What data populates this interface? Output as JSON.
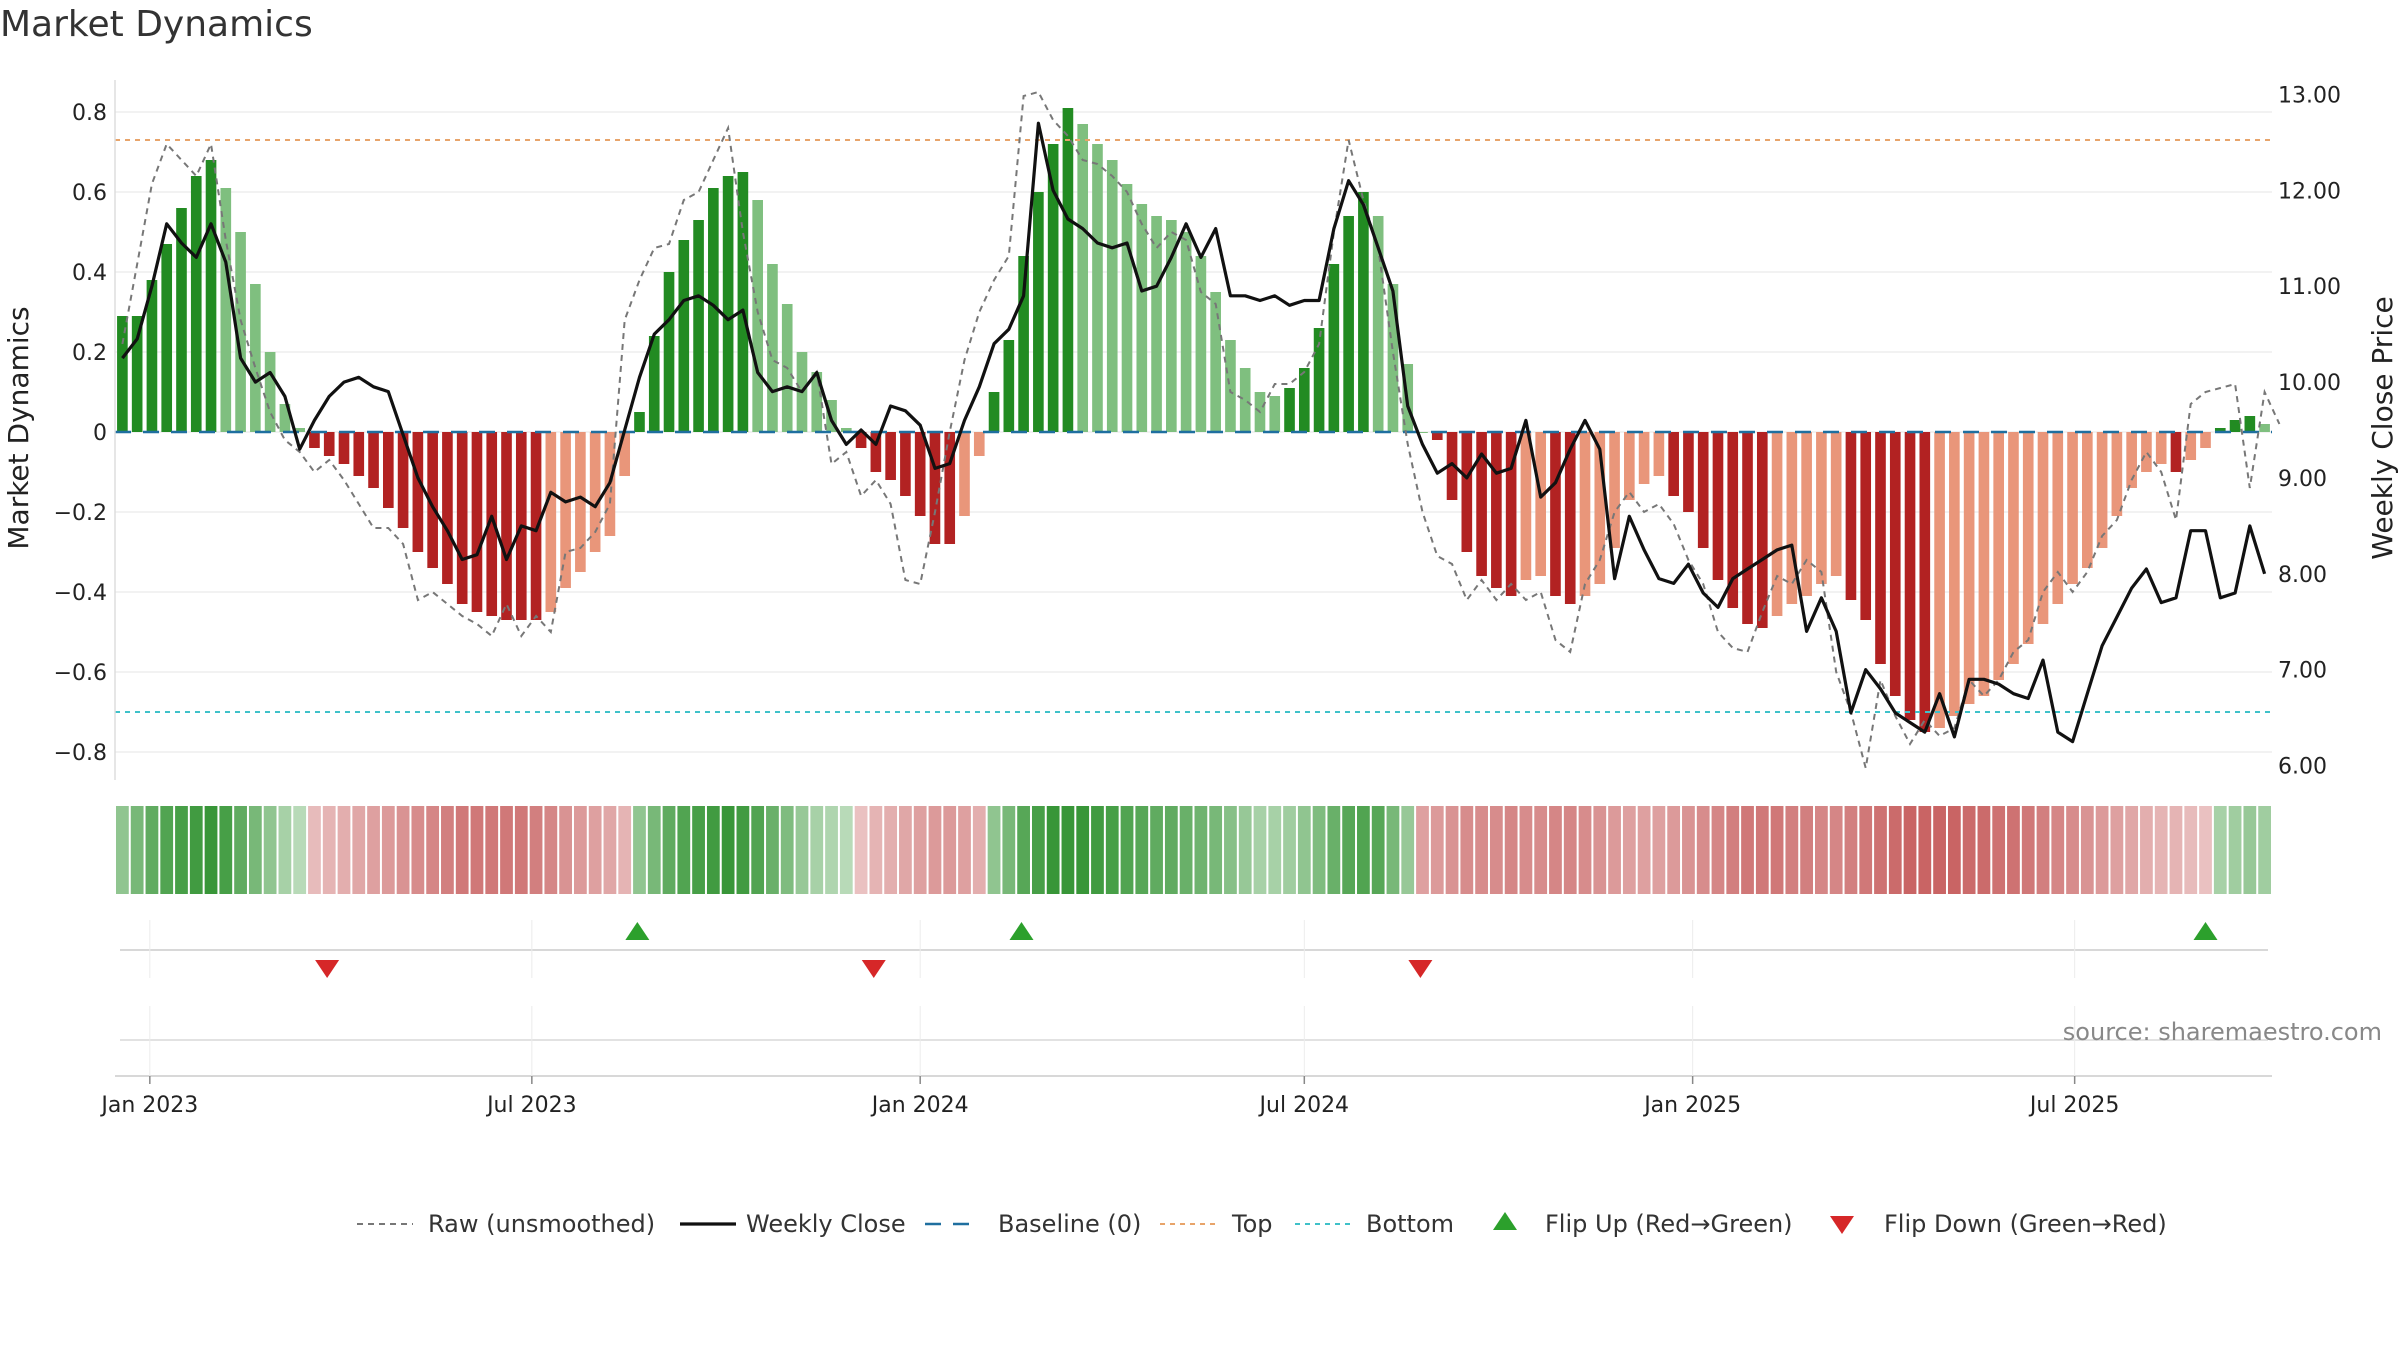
{
  "title": "Market Dynamics",
  "source": "source: sharemaestro.com",
  "colors": {
    "strong_green": "#228B22",
    "weak_green": "#7FBF7F",
    "strong_red": "#B22222",
    "weak_red": "#E9967A",
    "price_line": "#111111",
    "raw_line": "#777777",
    "baseline": "#1f6f9f",
    "top": "#e8a46a",
    "bottom": "#3fc1c9",
    "flip_up": "#2ca02c",
    "flip_down": "#d62728"
  },
  "chart_data": {
    "type": "bar",
    "x_start": "2022-12-19",
    "x_interval": "weekly",
    "y_left_label": "Market Dynamics",
    "y_right_label": "Weekly Close Price",
    "y_left_range": [
      -0.87,
      0.88
    ],
    "y_right_range": [
      5.85,
      13.15
    ],
    "y_left_ticks": [
      "0.8",
      "0.6",
      "0.4",
      "0.2",
      "0",
      "−0.2",
      "−0.4",
      "−0.6",
      "−0.8"
    ],
    "y_left_tick_values": [
      0.8,
      0.6,
      0.4,
      0.2,
      0,
      -0.2,
      -0.4,
      -0.6,
      -0.8
    ],
    "y_right_ticks": [
      "13.00",
      "12.00",
      "11.00",
      "10.00",
      "9.00",
      "8.00",
      "7.00",
      "6.00"
    ],
    "y_right_tick_values": [
      13,
      12,
      11,
      10,
      9,
      8,
      7,
      6
    ],
    "x_ticks": [
      {
        "label": "Jan 2023",
        "date": "2023-01-01"
      },
      {
        "label": "Jul 2023",
        "date": "2023-07-01"
      },
      {
        "label": "Jan 2024",
        "date": "2024-01-01"
      },
      {
        "label": "Jul 2024",
        "date": "2024-07-01"
      },
      {
        "label": "Jan 2025",
        "date": "2025-01-01"
      },
      {
        "label": "Jul 2025",
        "date": "2025-07-01"
      }
    ],
    "top_line": 0.73,
    "bottom_line": -0.7,
    "baseline": 0,
    "grid": true,
    "legend_position": "bottom",
    "legend": [
      "Raw (unsmoothed)",
      "Weekly Close",
      "Baseline (0)",
      "Top",
      "Bottom",
      "Flip Up (Red→Green)",
      "Flip Down (Green→Red)"
    ],
    "series": [
      {
        "name": "Market Dynamics",
        "values": [
          0.29,
          0.29,
          0.38,
          0.47,
          0.56,
          0.64,
          0.68,
          0.61,
          0.5,
          0.37,
          0.2,
          0.07,
          0.01,
          -0.04,
          -0.06,
          -0.08,
          -0.11,
          -0.14,
          -0.19,
          -0.24,
          -0.3,
          -0.34,
          -0.38,
          -0.43,
          -0.45,
          -0.46,
          -0.47,
          -0.47,
          -0.47,
          -0.45,
          -0.39,
          -0.35,
          -0.3,
          -0.26,
          -0.11,
          0.05,
          0.24,
          0.4,
          0.48,
          0.53,
          0.61,
          0.64,
          0.65,
          0.58,
          0.42,
          0.32,
          0.2,
          0.15,
          0.08,
          0.01,
          -0.04,
          -0.1,
          -0.12,
          -0.16,
          -0.21,
          -0.28,
          -0.28,
          -0.21,
          -0.06,
          0.1,
          0.23,
          0.44,
          0.6,
          0.72,
          0.81,
          0.77,
          0.72,
          0.68,
          0.62,
          0.57,
          0.54,
          0.53,
          0.5,
          0.44,
          0.35,
          0.23,
          0.16,
          0.1,
          0.09,
          0.11,
          0.16,
          0.26,
          0.42,
          0.54,
          0.6,
          0.54,
          0.37,
          0.17,
          0.0,
          -0.02,
          -0.17,
          -0.3,
          -0.36,
          -0.39,
          -0.41,
          -0.37,
          -0.36,
          -0.41,
          -0.43,
          -0.41,
          -0.38,
          -0.29,
          -0.17,
          -0.13,
          -0.11,
          -0.16,
          -0.2,
          -0.29,
          -0.37,
          -0.44,
          -0.48,
          -0.49,
          -0.46,
          -0.43,
          -0.41,
          -0.38,
          -0.36,
          -0.42,
          -0.47,
          -0.58,
          -0.66,
          -0.72,
          -0.75,
          -0.74,
          -0.71,
          -0.68,
          -0.66,
          -0.62,
          -0.58,
          -0.53,
          -0.48,
          -0.43,
          -0.38,
          -0.34,
          -0.29,
          -0.21,
          -0.14,
          -0.1,
          -0.08,
          -0.1,
          -0.07,
          -0.04,
          0.01,
          0.03,
          0.04,
          0.02
        ]
      },
      {
        "name": "Weekly Close",
        "values": [
          10.25,
          10.45,
          11.0,
          11.65,
          11.45,
          11.3,
          11.65,
          11.25,
          10.25,
          10.0,
          10.1,
          9.85,
          9.3,
          9.6,
          9.85,
          10.0,
          10.05,
          9.95,
          9.9,
          9.45,
          9.0,
          8.7,
          8.45,
          8.15,
          8.2,
          8.6,
          8.15,
          8.5,
          8.45,
          8.85,
          8.75,
          8.8,
          8.7,
          8.95,
          9.5,
          10.05,
          10.5,
          10.65,
          10.85,
          10.9,
          10.8,
          10.65,
          10.75,
          10.1,
          9.9,
          9.95,
          9.9,
          10.1,
          9.6,
          9.35,
          9.5,
          9.35,
          9.75,
          9.7,
          9.55,
          9.1,
          9.15,
          9.6,
          9.95,
          10.4,
          10.55,
          10.9,
          12.7,
          12.0,
          11.7,
          11.6,
          11.45,
          11.4,
          11.45,
          10.95,
          11.0,
          11.3,
          11.65,
          11.3,
          11.6,
          10.9,
          10.9,
          10.85,
          10.9,
          10.8,
          10.85,
          10.85,
          11.6,
          12.1,
          11.85,
          11.4,
          10.95,
          9.75,
          9.35,
          9.05,
          9.15,
          9.0,
          9.25,
          9.05,
          9.1,
          9.6,
          8.8,
          8.95,
          9.3,
          9.6,
          9.3,
          7.95,
          8.6,
          8.25,
          7.95,
          7.9,
          8.1,
          7.8,
          7.65,
          7.95,
          8.05,
          8.15,
          8.25,
          8.3,
          7.4,
          7.75,
          7.4,
          6.55,
          7.0,
          6.8,
          6.55,
          6.45,
          6.35,
          6.75,
          6.3,
          6.9,
          6.9,
          6.85,
          6.75,
          6.7,
          7.1,
          6.35,
          6.25,
          6.75,
          7.25,
          7.55,
          7.85,
          8.05,
          7.7,
          7.75,
          8.45,
          8.45,
          7.75,
          7.8,
          8.5,
          8.0
        ]
      },
      {
        "name": "Raw (unsmoothed)",
        "values": [
          0.22,
          0.42,
          0.62,
          0.72,
          0.68,
          0.64,
          0.72,
          0.48,
          0.28,
          0.16,
          0.05,
          -0.02,
          -0.05,
          -0.1,
          -0.07,
          -0.12,
          -0.18,
          -0.24,
          -0.24,
          -0.28,
          -0.42,
          -0.4,
          -0.43,
          -0.46,
          -0.48,
          -0.51,
          -0.43,
          -0.51,
          -0.46,
          -0.5,
          -0.3,
          -0.29,
          -0.25,
          -0.18,
          0.28,
          0.38,
          0.46,
          0.47,
          0.58,
          0.6,
          0.68,
          0.76,
          0.5,
          0.3,
          0.18,
          0.16,
          0.1,
          0.15,
          -0.08,
          -0.05,
          -0.16,
          -0.12,
          -0.18,
          -0.37,
          -0.38,
          -0.2,
          0.0,
          0.18,
          0.3,
          0.38,
          0.44,
          0.84,
          0.85,
          0.78,
          0.74,
          0.68,
          0.67,
          0.64,
          0.6,
          0.52,
          0.46,
          0.5,
          0.48,
          0.35,
          0.32,
          0.1,
          0.08,
          0.05,
          0.12,
          0.12,
          0.15,
          0.22,
          0.5,
          0.73,
          0.58,
          0.46,
          0.2,
          -0.03,
          -0.2,
          -0.31,
          -0.33,
          -0.42,
          -0.37,
          -0.42,
          -0.38,
          -0.42,
          -0.4,
          -0.52,
          -0.55,
          -0.38,
          -0.32,
          -0.2,
          -0.15,
          -0.2,
          -0.18,
          -0.23,
          -0.32,
          -0.38,
          -0.5,
          -0.54,
          -0.55,
          -0.45,
          -0.36,
          -0.38,
          -0.32,
          -0.35,
          -0.6,
          -0.7,
          -0.84,
          -0.62,
          -0.71,
          -0.78,
          -0.72,
          -0.76,
          -0.74,
          -0.62,
          -0.66,
          -0.62,
          -0.55,
          -0.52,
          -0.4,
          -0.35,
          -0.4,
          -0.35,
          -0.26,
          -0.22,
          -0.12,
          -0.05,
          -0.1,
          -0.22,
          0.07,
          0.1,
          0.11,
          0.12,
          -0.14,
          0.1,
          0.02
        ]
      }
    ],
    "state_strip": {
      "name": "Regime",
      "values": [
        0.45,
        0.6,
        0.75,
        0.85,
        0.9,
        0.95,
        1.0,
        0.9,
        0.75,
        0.6,
        0.45,
        0.3,
        0.2,
        -0.25,
        -0.3,
        -0.35,
        -0.4,
        -0.45,
        -0.5,
        -0.55,
        -0.6,
        -0.65,
        -0.7,
        -0.75,
        -0.75,
        -0.75,
        -0.75,
        -0.75,
        -0.7,
        -0.65,
        -0.55,
        -0.5,
        -0.45,
        -0.4,
        -0.3,
        0.45,
        0.6,
        0.75,
        0.85,
        0.9,
        0.95,
        1.0,
        0.95,
        0.85,
        0.7,
        0.55,
        0.4,
        0.3,
        0.25,
        0.2,
        -0.2,
        -0.3,
        -0.35,
        -0.4,
        -0.45,
        -0.5,
        -0.5,
        -0.45,
        -0.35,
        0.45,
        0.6,
        0.8,
        0.9,
        1.0,
        1.0,
        1.0,
        0.95,
        0.9,
        0.85,
        0.8,
        0.75,
        0.75,
        0.7,
        0.65,
        0.6,
        0.5,
        0.4,
        0.3,
        0.3,
        0.35,
        0.45,
        0.55,
        0.7,
        0.8,
        0.85,
        0.8,
        0.6,
        0.4,
        -0.45,
        -0.5,
        -0.55,
        -0.6,
        -0.6,
        -0.6,
        -0.65,
        -0.6,
        -0.6,
        -0.65,
        -0.65,
        -0.6,
        -0.55,
        -0.5,
        -0.45,
        -0.45,
        -0.45,
        -0.5,
        -0.55,
        -0.6,
        -0.65,
        -0.7,
        -0.75,
        -0.75,
        -0.75,
        -0.7,
        -0.7,
        -0.65,
        -0.65,
        -0.7,
        -0.75,
        -0.8,
        -0.85,
        -0.9,
        -0.9,
        -0.9,
        -0.9,
        -0.85,
        -0.85,
        -0.8,
        -0.8,
        -0.75,
        -0.7,
        -0.65,
        -0.6,
        -0.55,
        -0.5,
        -0.45,
        -0.4,
        -0.35,
        -0.3,
        -0.3,
        -0.25,
        -0.2,
        0.3,
        0.35,
        0.4,
        0.35
      ]
    },
    "flip_up_dates": [
      "2023-08-20",
      "2024-02-18",
      "2025-09-01"
    ],
    "flip_down_dates": [
      "2023-03-26",
      "2023-12-10",
      "2024-08-25"
    ]
  }
}
